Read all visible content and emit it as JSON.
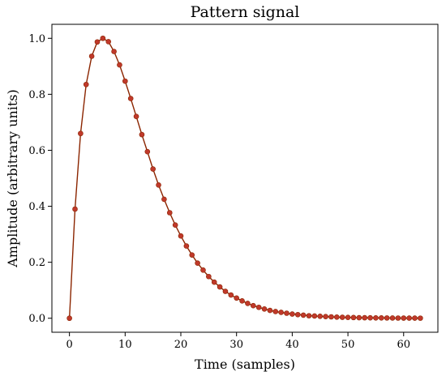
{
  "chart_data": {
    "type": "line",
    "title": "Pattern signal",
    "xlabel": "Time (samples)",
    "ylabel": "Amplitude (arbitrary units)",
    "xlim": [
      -3.15,
      66.15
    ],
    "ylim": [
      -0.05,
      1.05
    ],
    "xticks": [
      0,
      10,
      20,
      30,
      40,
      50,
      60
    ],
    "yticks": [
      0.0,
      0.2,
      0.4,
      0.6,
      0.8,
      1.0
    ],
    "ytick_labels": [
      "0.0",
      "0.2",
      "0.4",
      "0.6",
      "0.8",
      "1.0"
    ],
    "grid": false,
    "colors": {
      "line": "#8b2500",
      "marker": "#c0392b",
      "marker_edge": "#8b2500"
    },
    "series": [
      {
        "x": [
          0,
          1,
          2,
          3,
          4,
          5,
          6,
          7,
          8,
          9,
          10,
          11,
          12,
          13,
          14,
          15,
          16,
          17,
          18,
          19,
          20,
          21,
          22,
          23,
          24,
          25,
          26,
          27,
          28,
          29,
          30,
          31,
          32,
          33,
          34,
          35,
          36,
          37,
          38,
          39,
          40,
          41,
          42,
          43,
          44,
          45,
          46,
          47,
          48,
          49,
          50,
          51,
          52,
          53,
          54,
          55,
          56,
          57,
          58,
          59,
          60,
          61,
          62,
          63
        ],
        "values": [
          0.0,
          0.39,
          0.66,
          0.835,
          0.936,
          0.987,
          1.0,
          0.988,
          0.953,
          0.905,
          0.847,
          0.785,
          0.721,
          0.656,
          0.595,
          0.533,
          0.476,
          0.425,
          0.377,
          0.333,
          0.294,
          0.258,
          0.226,
          0.197,
          0.172,
          0.149,
          0.129,
          0.112,
          0.096,
          0.083,
          0.072,
          0.062,
          0.053,
          0.045,
          0.039,
          0.033,
          0.028,
          0.024,
          0.021,
          0.018,
          0.015,
          0.013,
          0.011,
          0.009,
          0.008,
          0.007,
          0.006,
          0.005,
          0.004,
          0.0035,
          0.003,
          0.0025,
          0.002,
          0.0018,
          0.0015,
          0.0013,
          0.0011,
          0.001,
          0.0008,
          0.0007,
          0.0006,
          0.0005,
          0.0004,
          0.0003
        ]
      }
    ]
  }
}
